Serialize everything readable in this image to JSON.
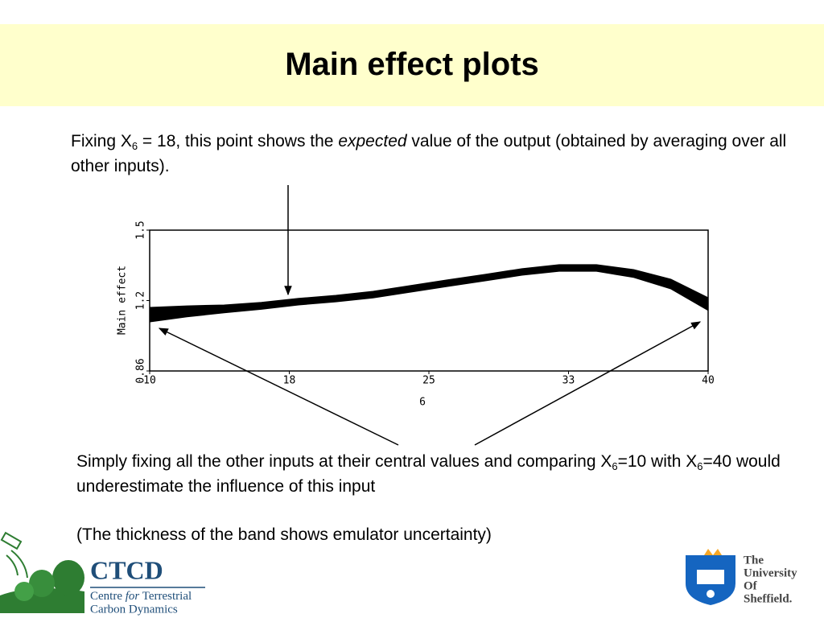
{
  "title": "Main effect plots",
  "note_top": [
    "Fixing X",
    "6",
    " = 18, this point shows the ",
    "expected",
    " value of the output (obtained by averaging over all other inputs)."
  ],
  "note_bottom": [
    "Simply fixing all the other inputs at their central values and comparing X",
    "6",
    "=10 with X",
    "6",
    "=40 would underestimate the influence of this input"
  ],
  "note_band": "(The thickness of the band shows emulator uncertainty)",
  "logos": {
    "ctcd": "CTCD",
    "ctcd_name": [
      "Centre ",
      "for",
      " Terrestrial",
      "Carbon Dynamics"
    ],
    "sheffield": [
      "The",
      "University",
      "Of",
      "Sheffield."
    ]
  },
  "chart_data": {
    "type": "band",
    "x": [
      10,
      12,
      14,
      16,
      18,
      20,
      22,
      24,
      26,
      28,
      30,
      32,
      34,
      36,
      38,
      40
    ],
    "upper": [
      1.149,
      1.156,
      1.16,
      1.172,
      1.19,
      1.204,
      1.222,
      1.248,
      1.274,
      1.299,
      1.325,
      1.343,
      1.343,
      1.321,
      1.277,
      1.193
    ],
    "lower": [
      1.083,
      1.106,
      1.124,
      1.14,
      1.16,
      1.174,
      1.192,
      1.218,
      1.244,
      1.269,
      1.295,
      1.313,
      1.313,
      1.285,
      1.233,
      1.135
    ],
    "color": "#000000",
    "xlabel": "6",
    "ylabel": "Main effect",
    "xlim": [
      10,
      40
    ],
    "xticks": [
      10,
      {
        "value": 17.5,
        "label": "18"
      },
      25,
      {
        "value": 32.5,
        "label": "33"
      },
      40
    ],
    "ylim": [
      0.86,
      1.5
    ],
    "yticks": [
      0.86,
      {
        "value": 1.18,
        "label": "1.2"
      },
      1.5
    ]
  }
}
